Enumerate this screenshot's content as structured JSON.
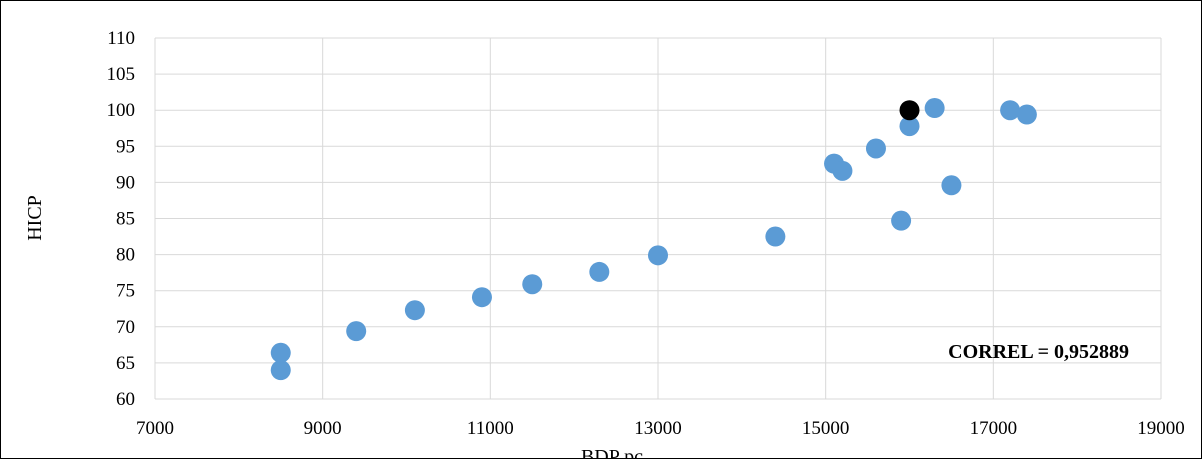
{
  "chart_data": {
    "type": "scatter",
    "title": "",
    "xlabel": "BDP pc",
    "ylabel": "HICP",
    "xlim": [
      7000,
      19000
    ],
    "ylim": [
      60,
      110
    ],
    "x_ticks": [
      7000,
      9000,
      11000,
      13000,
      15000,
      17000,
      19000
    ],
    "y_ticks": [
      60,
      65,
      70,
      75,
      80,
      85,
      90,
      95,
      100,
      105,
      110
    ],
    "grid": true,
    "annotation": "CORREL = 0,952889",
    "colors": {
      "points": "#5b9bd5",
      "highlight": "#000000",
      "grid": "#d9d9d9"
    },
    "series": [
      {
        "points": [
          [
            8500,
            64.0
          ],
          [
            8500,
            66.4
          ],
          [
            9400,
            69.4
          ],
          [
            10100,
            72.3
          ],
          [
            10900,
            74.1
          ],
          [
            11500,
            75.9
          ],
          [
            12300,
            77.6
          ],
          [
            13000,
            79.9
          ],
          [
            14400,
            82.5
          ],
          [
            15100,
            92.6
          ],
          [
            15200,
            91.6
          ],
          [
            15600,
            94.7
          ],
          [
            15900,
            84.7
          ],
          [
            16000,
            97.8
          ],
          [
            16300,
            100.3
          ],
          [
            16500,
            89.6
          ],
          [
            17200,
            100.0
          ],
          [
            17400,
            99.4
          ]
        ]
      }
    ],
    "highlight_points": [
      [
        16000,
        100.0
      ]
    ]
  }
}
